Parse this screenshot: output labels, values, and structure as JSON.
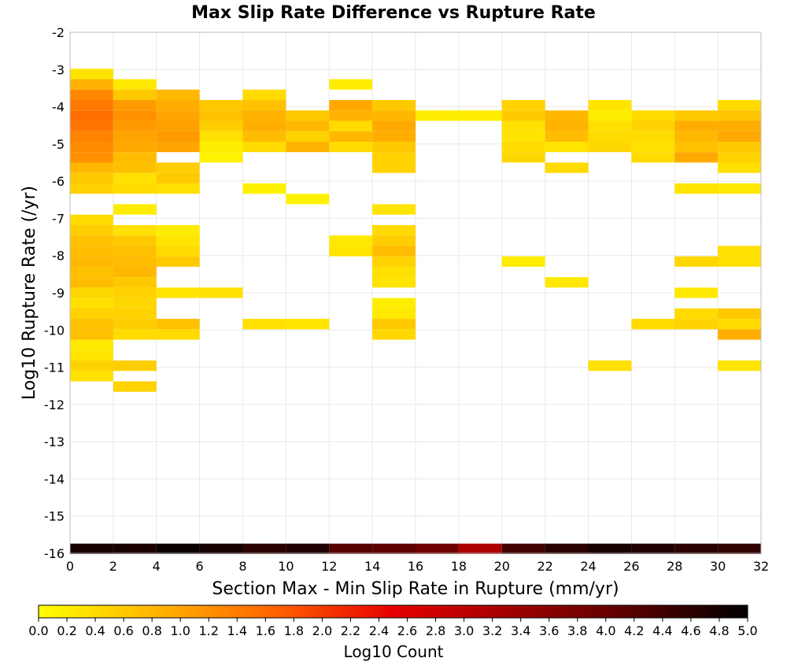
{
  "chart_data": {
    "type": "heatmap",
    "title": "Max Slip Rate Difference vs Rupture Rate",
    "xlabel": "Section Max - Min Slip Rate in Rupture (mm/yr)",
    "ylabel": "Log10 Rupture Rate (/yr)",
    "xlim": [
      0,
      32
    ],
    "ylim": [
      -16,
      -2
    ],
    "x_ticks": [
      "0",
      "2",
      "4",
      "6",
      "8",
      "10",
      "12",
      "14",
      "16",
      "18",
      "20",
      "22",
      "24",
      "26",
      "28",
      "30",
      "32"
    ],
    "y_ticks": [
      "-2",
      "-3",
      "-4",
      "-5",
      "-6",
      "-7",
      "-8",
      "-9",
      "-10",
      "-11",
      "-12",
      "-13",
      "-14",
      "-15",
      "-16"
    ],
    "x_bin_width": 2,
    "y_bin_height": 0.28,
    "grid": true,
    "colorbar": {
      "label": "Log10 Count",
      "range": [
        0,
        5
      ],
      "ticks": [
        "0.0",
        "0.2",
        "0.4",
        "0.6",
        "0.8",
        "1.0",
        "1.2",
        "1.4",
        "1.6",
        "1.8",
        "2.0",
        "2.2",
        "2.4",
        "2.6",
        "2.8",
        "3.0",
        "3.2",
        "3.4",
        "3.6",
        "3.8",
        "4.0",
        "4.2",
        "4.4",
        "4.6",
        "4.8",
        "5.0"
      ],
      "colors": [
        "#ffff00",
        "#ffb400",
        "#ff6400",
        "#e60000",
        "#a00000",
        "#5a0000",
        "#000000"
      ]
    },
    "cells": [
      [
        0,
        -3.12,
        0.3
      ],
      [
        0,
        -3.4,
        0.85
      ],
      [
        0,
        -3.68,
        1.3
      ],
      [
        0,
        -3.96,
        1.45
      ],
      [
        0,
        -4.24,
        1.55
      ],
      [
        0,
        -4.52,
        1.5
      ],
      [
        0,
        -4.8,
        1.35
      ],
      [
        0,
        -5.08,
        1.25
      ],
      [
        0,
        -5.36,
        1.2
      ],
      [
        0,
        -5.64,
        0.8
      ],
      [
        0,
        -5.92,
        0.6
      ],
      [
        0,
        -6.2,
        0.5
      ],
      [
        0,
        -7.04,
        0.4
      ],
      [
        0,
        -7.32,
        0.55
      ],
      [
        0,
        -7.6,
        0.7
      ],
      [
        0,
        -7.88,
        0.75
      ],
      [
        0,
        -8.16,
        0.8
      ],
      [
        0,
        -8.44,
        0.7
      ],
      [
        0,
        -8.72,
        0.75
      ],
      [
        0,
        -9.0,
        0.45
      ],
      [
        0,
        -9.28,
        0.35
      ],
      [
        0,
        -9.56,
        0.5
      ],
      [
        0,
        -9.84,
        0.7
      ],
      [
        0,
        -10.12,
        0.7
      ],
      [
        0,
        -10.4,
        0.25
      ],
      [
        0,
        -10.68,
        0.3
      ],
      [
        0,
        -10.96,
        0.5
      ],
      [
        0,
        -11.24,
        0.35
      ],
      [
        2,
        -3.4,
        0.25
      ],
      [
        2,
        -3.68,
        0.6
      ],
      [
        2,
        -3.96,
        1.1
      ],
      [
        2,
        -4.24,
        1.2
      ],
      [
        2,
        -4.52,
        1.1
      ],
      [
        2,
        -4.8,
        1.0
      ],
      [
        2,
        -5.08,
        0.95
      ],
      [
        2,
        -5.36,
        0.75
      ],
      [
        2,
        -5.64,
        0.7
      ],
      [
        2,
        -5.92,
        0.35
      ],
      [
        2,
        -6.2,
        0.4
      ],
      [
        2,
        -6.76,
        0.2
      ],
      [
        2,
        -7.32,
        0.35
      ],
      [
        2,
        -7.6,
        0.6
      ],
      [
        2,
        -7.88,
        0.7
      ],
      [
        2,
        -8.16,
        0.75
      ],
      [
        2,
        -8.44,
        0.8
      ],
      [
        2,
        -8.72,
        0.6
      ],
      [
        2,
        -9.0,
        0.5
      ],
      [
        2,
        -9.28,
        0.45
      ],
      [
        2,
        -9.56,
        0.5
      ],
      [
        2,
        -9.84,
        0.55
      ],
      [
        2,
        -10.12,
        0.4
      ],
      [
        2,
        -10.96,
        0.55
      ],
      [
        2,
        -11.52,
        0.5
      ],
      [
        4,
        -3.68,
        0.8
      ],
      [
        4,
        -3.96,
        0.9
      ],
      [
        4,
        -4.24,
        1.0
      ],
      [
        4,
        -4.52,
        1.05
      ],
      [
        4,
        -4.8,
        1.1
      ],
      [
        4,
        -5.08,
        1.0
      ],
      [
        4,
        -5.64,
        0.55
      ],
      [
        4,
        -5.92,
        0.6
      ],
      [
        4,
        -6.2,
        0.35
      ],
      [
        4,
        -7.32,
        0.2
      ],
      [
        4,
        -7.6,
        0.3
      ],
      [
        4,
        -7.88,
        0.4
      ],
      [
        4,
        -8.16,
        0.6
      ],
      [
        4,
        -9.0,
        0.3
      ],
      [
        4,
        -9.84,
        0.7
      ],
      [
        4,
        -10.12,
        0.4
      ],
      [
        6,
        -3.96,
        0.6
      ],
      [
        6,
        -4.24,
        0.7
      ],
      [
        6,
        -4.52,
        0.55
      ],
      [
        6,
        -4.8,
        0.35
      ],
      [
        6,
        -5.08,
        0.2
      ],
      [
        6,
        -5.36,
        0.15
      ],
      [
        6,
        -9.0,
        0.35
      ],
      [
        8,
        -3.68,
        0.4
      ],
      [
        8,
        -3.96,
        0.7
      ],
      [
        8,
        -4.24,
        0.85
      ],
      [
        8,
        -4.52,
        0.9
      ],
      [
        8,
        -4.8,
        0.75
      ],
      [
        8,
        -5.08,
        0.4
      ],
      [
        8,
        -6.2,
        0.15
      ],
      [
        8,
        -9.84,
        0.35
      ],
      [
        10,
        -4.24,
        0.6
      ],
      [
        10,
        -4.52,
        0.8
      ],
      [
        10,
        -4.8,
        0.5
      ],
      [
        10,
        -5.08,
        0.85
      ],
      [
        10,
        -6.48,
        0.15
      ],
      [
        10,
        -9.84,
        0.3
      ],
      [
        12,
        -3.4,
        0.2
      ],
      [
        12,
        -3.96,
        0.95
      ],
      [
        12,
        -4.24,
        0.85
      ],
      [
        12,
        -4.52,
        0.4
      ],
      [
        12,
        -4.8,
        0.8
      ],
      [
        12,
        -5.08,
        0.4
      ],
      [
        12,
        -7.6,
        0.25
      ],
      [
        12,
        -7.88,
        0.3
      ],
      [
        14,
        -3.96,
        0.6
      ],
      [
        14,
        -4.24,
        0.8
      ],
      [
        14,
        -4.52,
        0.95
      ],
      [
        14,
        -4.8,
        0.9
      ],
      [
        14,
        -5.08,
        0.6
      ],
      [
        14,
        -5.36,
        0.5
      ],
      [
        14,
        -5.64,
        0.5
      ],
      [
        14,
        -6.76,
        0.3
      ],
      [
        14,
        -7.32,
        0.4
      ],
      [
        14,
        -7.6,
        0.55
      ],
      [
        14,
        -7.88,
        0.75
      ],
      [
        14,
        -8.16,
        0.5
      ],
      [
        14,
        -8.44,
        0.35
      ],
      [
        14,
        -8.72,
        0.3
      ],
      [
        14,
        -9.28,
        0.2
      ],
      [
        14,
        -9.56,
        0.25
      ],
      [
        14,
        -9.84,
        0.6
      ],
      [
        14,
        -10.12,
        0.45
      ],
      [
        16,
        -4.24,
        0.2
      ],
      [
        18,
        -4.24,
        0.2
      ],
      [
        20,
        -3.96,
        0.5
      ],
      [
        20,
        -4.24,
        0.6
      ],
      [
        20,
        -4.52,
        0.35
      ],
      [
        20,
        -4.8,
        0.3
      ],
      [
        20,
        -5.08,
        0.4
      ],
      [
        20,
        -5.36,
        0.45
      ],
      [
        20,
        -8.16,
        0.2
      ],
      [
        22,
        -4.24,
        0.8
      ],
      [
        22,
        -4.52,
        0.85
      ],
      [
        22,
        -4.8,
        0.75
      ],
      [
        22,
        -5.08,
        0.3
      ],
      [
        22,
        -5.64,
        0.4
      ],
      [
        22,
        -8.72,
        0.25
      ],
      [
        24,
        -3.96,
        0.3
      ],
      [
        24,
        -4.24,
        0.2
      ],
      [
        24,
        -4.52,
        0.35
      ],
      [
        24,
        -4.8,
        0.4
      ],
      [
        24,
        -5.08,
        0.45
      ],
      [
        24,
        -10.96,
        0.35
      ],
      [
        26,
        -4.24,
        0.4
      ],
      [
        26,
        -4.52,
        0.5
      ],
      [
        26,
        -4.8,
        0.4
      ],
      [
        26,
        -5.08,
        0.35
      ],
      [
        26,
        -5.36,
        0.4
      ],
      [
        26,
        -9.84,
        0.4
      ],
      [
        28,
        -4.24,
        0.6
      ],
      [
        28,
        -4.52,
        0.9
      ],
      [
        28,
        -4.8,
        0.8
      ],
      [
        28,
        -5.08,
        0.7
      ],
      [
        28,
        -5.36,
        0.95
      ],
      [
        28,
        -6.2,
        0.3
      ],
      [
        28,
        -8.16,
        0.45
      ],
      [
        28,
        -9.0,
        0.25
      ],
      [
        28,
        -9.56,
        0.4
      ],
      [
        28,
        -9.84,
        0.5
      ],
      [
        30,
        -3.96,
        0.4
      ],
      [
        30,
        -4.24,
        0.65
      ],
      [
        30,
        -4.52,
        0.9
      ],
      [
        30,
        -4.8,
        0.95
      ],
      [
        30,
        -5.08,
        0.6
      ],
      [
        30,
        -5.36,
        0.5
      ],
      [
        30,
        -5.64,
        0.35
      ],
      [
        30,
        -6.2,
        0.25
      ],
      [
        30,
        -7.88,
        0.35
      ],
      [
        30,
        -8.16,
        0.35
      ],
      [
        30,
        -9.56,
        0.6
      ],
      [
        30,
        -9.84,
        0.4
      ],
      [
        30,
        -10.12,
        0.9
      ],
      [
        30,
        -10.96,
        0.3
      ],
      [
        0,
        -15.88,
        4.8
      ],
      [
        2,
        -15.88,
        4.75
      ],
      [
        4,
        -15.88,
        4.9
      ],
      [
        6,
        -15.88,
        4.8
      ],
      [
        8,
        -15.88,
        4.6
      ],
      [
        10,
        -15.88,
        4.7
      ],
      [
        12,
        -15.88,
        4.2
      ],
      [
        14,
        -15.88,
        4.1
      ],
      [
        16,
        -15.88,
        3.9
      ],
      [
        18,
        -15.88,
        3.2
      ],
      [
        20,
        -15.88,
        4.4
      ],
      [
        22,
        -15.88,
        4.6
      ],
      [
        24,
        -15.88,
        4.8
      ],
      [
        26,
        -15.88,
        4.7
      ],
      [
        28,
        -15.88,
        4.6
      ],
      [
        30,
        -15.88,
        4.55
      ]
    ]
  }
}
